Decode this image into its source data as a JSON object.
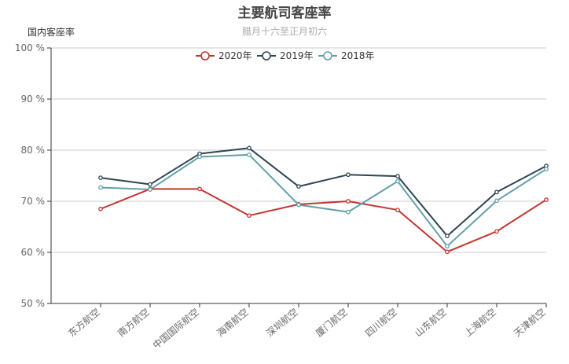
{
  "chart_data": {
    "type": "line",
    "title": "主要航司客座率",
    "subtitle": "腊月十六至正月初六",
    "ylabel": "国内客座率",
    "xlabel": "",
    "ylim": [
      50,
      100
    ],
    "yticks": [
      50,
      60,
      70,
      80,
      90,
      100
    ],
    "ytick_suffix": " %",
    "grid": true,
    "legend_position": "top-center",
    "categories": [
      "东方航空",
      "南方航空",
      "中国国际航空",
      "海南航空",
      "深圳航空",
      "厦门航空",
      "四川航空",
      "山东航空",
      "上海航空",
      "天津航空"
    ],
    "series": [
      {
        "name": "2020年",
        "color": "#c23531",
        "values": [
          68.5,
          72.4,
          72.4,
          67.2,
          69.4,
          70.0,
          68.3,
          60.1,
          64.1,
          70.3
        ]
      },
      {
        "name": "2019年",
        "color": "#2f4554",
        "values": [
          74.6,
          73.3,
          79.3,
          80.4,
          72.9,
          75.2,
          74.9,
          63.2,
          71.8,
          76.9
        ]
      },
      {
        "name": "2018年",
        "color": "#61a0a8",
        "values": [
          72.7,
          72.3,
          78.7,
          79.1,
          69.3,
          67.9,
          73.9,
          61.2,
          70.1,
          76.3
        ]
      }
    ]
  }
}
